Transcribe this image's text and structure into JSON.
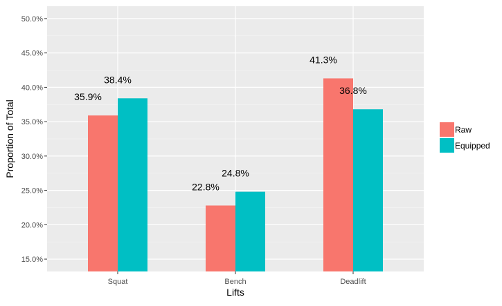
{
  "chart_data": {
    "type": "bar",
    "xlabel": "Lifts",
    "ylabel": "Proportion of Total",
    "categories": [
      "Squat",
      "Bench",
      "Deadlift"
    ],
    "series": [
      {
        "name": "Raw",
        "color": "#F8766D",
        "values": [
          35.9,
          22.8,
          41.3
        ],
        "labels": [
          "35.9%",
          "22.8%",
          "41.3%"
        ]
      },
      {
        "name": "Equipped",
        "color": "#00BFC4",
        "values": [
          38.4,
          24.8,
          36.8
        ],
        "labels": [
          "38.4%",
          "24.8%",
          "36.8%"
        ]
      }
    ],
    "ylim": [
      13.2,
      51.8
    ],
    "yticks": [
      15,
      20,
      25,
      30,
      35,
      40,
      45,
      50
    ],
    "ytick_labels": [
      "15.0%",
      "20.0%",
      "25.0%",
      "30.0%",
      "35.0%",
      "40.0%",
      "45.0%",
      "50.0%"
    ],
    "grid": true,
    "panel_background": "#EBEBEB",
    "legend_position": "right"
  }
}
